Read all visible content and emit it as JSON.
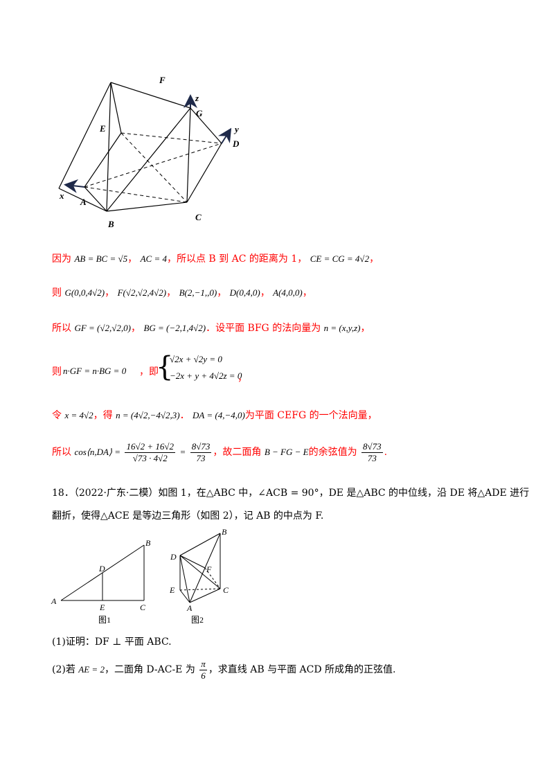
{
  "solid_labels": {
    "F": "F",
    "z": "z",
    "G": "G",
    "E": "E",
    "y": "y",
    "D": "D",
    "x": "x",
    "A": "A",
    "B": "B",
    "C": "C"
  },
  "sol": {
    "l1_pre": "因为",
    "l1_m1": "AB = BC = √5",
    "l1_sep1": "，",
    "l1_m2": "AC = 4",
    "l1_txt": "，所以点 B 到 AC 的距离为 1，",
    "l1_m3": "CE = CG = 4√2",
    "l1_end": "，",
    "l2_pre": "则",
    "l2_m1": "G(0,0,4√2)",
    "l2_m2": "F(√2,√2,4√2)",
    "l2_m3": "B(2,−1,,0)",
    "l2_m4": "D(0,4,0)",
    "l2_m5": "A(4,0,0)",
    "sep": "，",
    "l3_pre": "所以",
    "l3_m1": "GF = (√2,√2,0)",
    "l3_m2": "BG = (−2,1,4√2)",
    "l3_txt": "．设平面 BFG 的法向量为",
    "l3_m3": "n = (x,y,z)",
    "l3_end": "，",
    "l4_pre": "则",
    "l4_m1": "n·GF = n·BG = 0",
    "l4_txt": "，即",
    "l4_sys1": "√2x + √2y = 0",
    "l4_sys2": "−2x + y + 4√2z = 0",
    "l4_end": "，",
    "l5_pre": "令",
    "l5_m1": "x = 4√2",
    "l5_txt1": "，得",
    "l5_m2": "n = (4√2,−4√2,3)",
    "l5_dot": "．",
    "l5_m3": "DA = (4,−4,0)",
    "l5_txt2": "为平面 CEFG 的一个法向量，",
    "l6_pre": "所以",
    "l6_cos": "cos⟨n,DA⟩ =",
    "l6_num1": "16√2 + 16√2",
    "l6_den1": "√73 · 4√2",
    "l6_eq": "=",
    "l6_num2": "8√73",
    "l6_den2": "73",
    "l6_txt1": "，故二面角",
    "l6_m": "B − FG − E",
    "l6_txt2": "的余弦值为",
    "l6_num3": "8√73",
    "l6_den3": "73",
    "l6_end": "."
  },
  "problem": {
    "line1": "18．（2022·广东·二模）如图 1，在△ABC 中，∠ACB = 90°，DE 是△ABC 的中位线，沿 DE 将△ADE 进行",
    "line2": "翻折，使得△ACE 是等边三角形（如图 2），记 AB 的中点为 F.",
    "q1": "(1)证明：DF ⊥ 平面 ABC.",
    "q2_pre": "(2)若",
    "q2_m": "AE = 2",
    "q2_mid": "，二面角 D-AC-E 为",
    "q2_num": "π",
    "q2_den": "6",
    "q2_end": "，求直线 AB 与平面 ACD 所成角的正弦值."
  },
  "fig1": {
    "A": "A",
    "B": "B",
    "C": "C",
    "D": "D",
    "E": "E",
    "caption": "图1"
  },
  "fig2": {
    "A": "A",
    "B": "B",
    "C": "C",
    "D": "D",
    "E": "E",
    "F": "F",
    "caption": "图2"
  }
}
